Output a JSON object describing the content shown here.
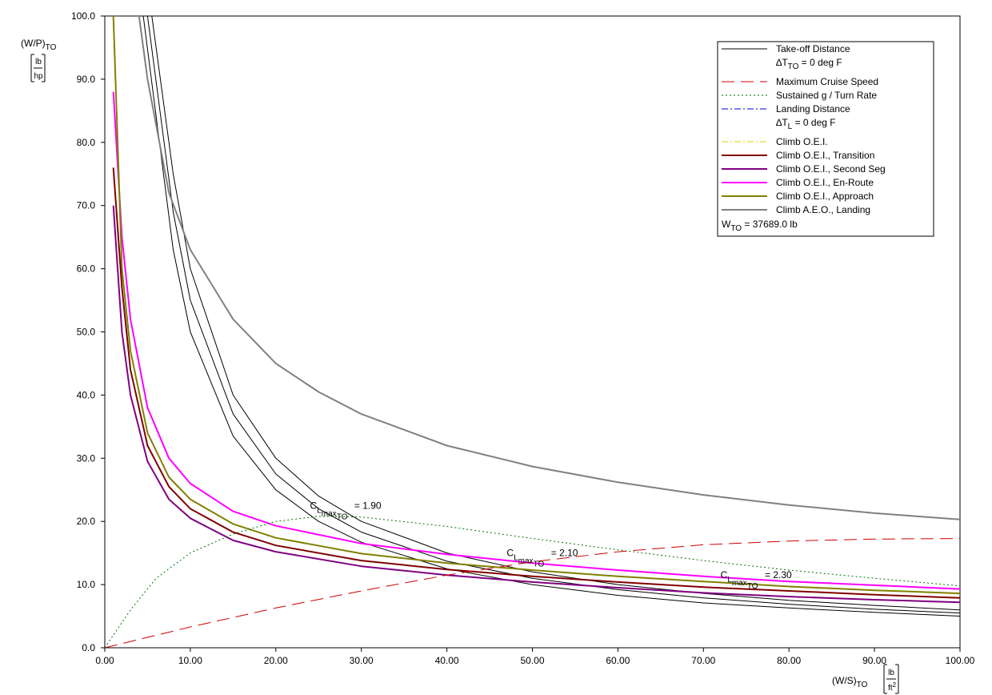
{
  "chart_data": {
    "type": "line",
    "xlim": [
      0,
      100
    ],
    "ylim": [
      0,
      100
    ],
    "x_ticks": [
      "0.00",
      "10.00",
      "20.00",
      "30.00",
      "40.00",
      "50.00",
      "60.00",
      "70.00",
      "80.00",
      "90.00",
      "100.00"
    ],
    "y_ticks": [
      "0.0",
      "10.0",
      "20.0",
      "30.0",
      "40.0",
      "50.0",
      "60.0",
      "70.0",
      "80.0",
      "90.0",
      "100.0"
    ],
    "ylabel": {
      "main": "(W/P)",
      "sub": "TO",
      "unit_num": "lb",
      "unit_den": "hp"
    },
    "xlabel": {
      "main": "(W/S)",
      "sub": "TO",
      "unit_num": "lb",
      "unit_den": "ft",
      "unit_exp": "2"
    },
    "grid": false,
    "legend": {
      "position": "top-right",
      "entries": [
        {
          "label": "Take-off Distance",
          "color": "#000000",
          "dash": "solid",
          "width": 1
        },
        {
          "label": "",
          "sub_text": {
            "pre": "∆T",
            "sub": "TO",
            "post": " = 0 deg F"
          }
        },
        {
          "label": "Maximum Cruise Speed",
          "color": "#cc0000",
          "dash": "long",
          "width": 1
        },
        {
          "label": "Sustained g / Turn Rate",
          "color": "#007700",
          "dash": "dot",
          "width": 1
        },
        {
          "label": "Landing Distance",
          "color": "#0000cc",
          "dash": "dashdot",
          "width": 1
        },
        {
          "label": "",
          "sub_text": {
            "pre": "∆T",
            "sub": "L",
            "post": " = 0 deg F"
          }
        },
        {
          "label": "Climb O.E.I.",
          "color": "#e0d000",
          "dash": "dashdot",
          "width": 1
        },
        {
          "label": "Climb O.E.I., Transition",
          "color": "#800000",
          "dash": "solid",
          "width": 2
        },
        {
          "label": "Climb O.E.I., Second Seg",
          "color": "#800080",
          "dash": "solid",
          "width": 2
        },
        {
          "label": "Climb O.E.I., En-Route",
          "color": "#ff00ff",
          "dash": "solid",
          "width": 2
        },
        {
          "label": "Climb O.E.I., Approach",
          "color": "#808000",
          "dash": "solid",
          "width": 2
        },
        {
          "label": "Climb A.E.O., Landing",
          "color": "#808080",
          "dash": "solid",
          "width": 2
        }
      ],
      "note": {
        "pre": "W",
        "sub": "TO",
        "post": " = 37689.0 lb"
      }
    },
    "annotations": [
      {
        "base": "C",
        "sub1": "L",
        "sub2": "max",
        "sub3": "TO",
        "value": " = 1.90",
        "x": 24,
        "y": 22
      },
      {
        "base": "C",
        "sub1": "L",
        "sub2": "max",
        "sub3": "TO",
        "value": " = 2.10",
        "x": 47,
        "y": 14.5
      },
      {
        "base": "C",
        "sub1": "L",
        "sub2": "max",
        "sub3": "TO",
        "value": " = 2.30",
        "x": 72,
        "y": 11
      }
    ],
    "series": [
      {
        "name": "Take-off Distance",
        "color": "#000000",
        "width": 1,
        "dash": "solid",
        "x": [
          5.5,
          8,
          10,
          15,
          20,
          25,
          30,
          40,
          50,
          60,
          70,
          80,
          90,
          100
        ],
        "y": [
          100,
          75,
          60,
          40,
          30,
          24,
          20,
          15,
          12,
          10,
          8.6,
          7.5,
          6.7,
          6.0
        ]
      },
      {
        "name": "Take-off Distance",
        "color": "#000000",
        "width": 1,
        "dash": "solid",
        "x": [
          5.0,
          8,
          10,
          15,
          20,
          25,
          30,
          40,
          50,
          60,
          70,
          80,
          90,
          100
        ],
        "y": [
          100,
          69,
          55,
          37,
          27.5,
          22,
          18.3,
          13.7,
          11,
          9.2,
          7.9,
          6.9,
          6.1,
          5.5
        ]
      },
      {
        "name": "Take-off Distance",
        "color": "#000000",
        "width": 1,
        "dash": "solid",
        "x": [
          4.5,
          8,
          10,
          15,
          20,
          25,
          30,
          40,
          50,
          60,
          70,
          80,
          90,
          100
        ],
        "y": [
          100,
          63,
          50,
          33.5,
          25,
          20,
          16.7,
          12.5,
          10,
          8.3,
          7.1,
          6.3,
          5.6,
          5.0
        ]
      },
      {
        "name": "Climb A.E.O., Landing",
        "color": "#808080",
        "width": 2,
        "dash": "solid",
        "x": [
          4,
          5,
          7.5,
          10,
          15,
          20,
          25,
          30,
          40,
          50,
          60,
          70,
          80,
          90,
          100
        ],
        "y": [
          100,
          90,
          72,
          63,
          52,
          45,
          40.5,
          37,
          32,
          28.7,
          26.2,
          24.2,
          22.6,
          21.3,
          20.3
        ]
      },
      {
        "name": "Climb O.E.I., En-Route",
        "color": "#ff00ff",
        "width": 2,
        "dash": "solid",
        "x": [
          1,
          2,
          3,
          5,
          7.5,
          10,
          15,
          20,
          30,
          40,
          50,
          60,
          70,
          80,
          90,
          100
        ],
        "y": [
          88,
          65,
          52,
          38,
          30,
          26,
          21.6,
          19.3,
          16.5,
          14.8,
          13.4,
          12.3,
          11.3,
          10.5,
          9.9,
          9.3
        ]
      },
      {
        "name": "Climb O.E.I., Approach",
        "color": "#808000",
        "width": 2,
        "dash": "solid",
        "x": [
          1,
          2,
          3,
          5,
          7.5,
          10,
          15,
          20,
          30,
          40,
          50,
          60,
          70,
          80,
          90,
          100
        ],
        "y": [
          100,
          60,
          47,
          34,
          27,
          23.5,
          19.6,
          17.4,
          14.9,
          13.4,
          12.3,
          11.3,
          10.5,
          9.7,
          9.1,
          8.6
        ]
      },
      {
        "name": "Climb O.E.I., Transition",
        "color": "#800000",
        "width": 2,
        "dash": "solid",
        "x": [
          1,
          2,
          3,
          5,
          7.5,
          10,
          15,
          20,
          30,
          40,
          50,
          60,
          70,
          80,
          90,
          100
        ],
        "y": [
          76,
          57,
          44,
          32,
          25.5,
          22,
          18.3,
          16.2,
          13.8,
          12.4,
          11.3,
          10.4,
          9.6,
          9.0,
          8.4,
          7.9
        ]
      },
      {
        "name": "Climb O.E.I., Second Seg",
        "color": "#800080",
        "width": 2,
        "dash": "solid",
        "x": [
          1,
          2,
          3,
          5,
          7.5,
          10,
          15,
          20,
          30,
          40,
          50,
          60,
          70,
          80,
          90,
          100
        ],
        "y": [
          70,
          50,
          40,
          29.5,
          23.5,
          20.5,
          17,
          15.2,
          12.9,
          11.5,
          10.4,
          9.5,
          8.7,
          8.1,
          7.6,
          7.2
        ]
      },
      {
        "name": "Sustained g / Turn Rate",
        "color": "#007700",
        "width": 1,
        "dash": "dot",
        "x": [
          0,
          3,
          6,
          10,
          15,
          20,
          25,
          30,
          40,
          50,
          60,
          70,
          80,
          90,
          100
        ],
        "y": [
          0,
          6,
          11,
          15,
          18,
          20,
          20.8,
          20.7,
          19.2,
          17.3,
          15.5,
          13.8,
          12.3,
          11,
          9.8
        ]
      },
      {
        "name": "Maximum Cruise Speed",
        "color": "#cc0000",
        "width": 1,
        "dash": "long",
        "x": [
          0,
          10,
          20,
          30,
          40,
          50,
          60,
          70,
          80,
          90,
          100
        ],
        "y": [
          0,
          3.3,
          6.3,
          9.0,
          11.5,
          13.6,
          15.2,
          16.3,
          16.9,
          17.2,
          17.3
        ]
      }
    ]
  }
}
